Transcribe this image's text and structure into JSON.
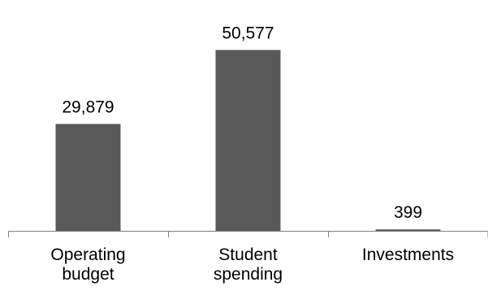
{
  "chart_data": {
    "type": "bar",
    "categories": [
      [
        "Operating",
        "budget"
      ],
      [
        "Student",
        "spending"
      ],
      [
        "Investments"
      ]
    ],
    "values": [
      29879,
      50577,
      399
    ],
    "value_labels": [
      "29,879",
      "50,577",
      "399"
    ],
    "title": "",
    "xlabel": "",
    "ylabel": "",
    "ylim": [
      0,
      60000
    ],
    "grid": false,
    "legend": "none",
    "bar_color": "#595959",
    "axis_color": "#7f7f7f"
  }
}
